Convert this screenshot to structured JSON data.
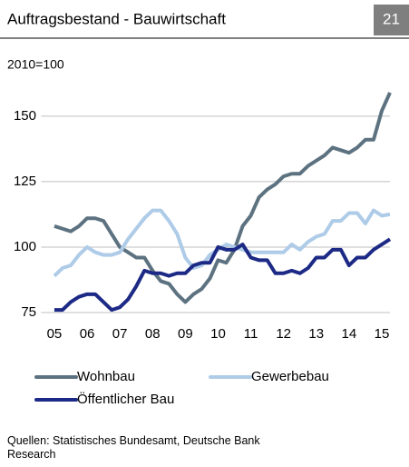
{
  "chart_data": {
    "type": "line",
    "title": "Auftragsbestand - Bauwirtschaft",
    "page_number": "21",
    "subtitle": "2010=100",
    "source": "Quellen: Statistisches Bundesamt, Deutsche Bank Research",
    "x": [
      2005,
      2005.25,
      2005.5,
      2005.75,
      2006,
      2006.25,
      2006.5,
      2006.75,
      2007,
      2007.25,
      2007.5,
      2007.75,
      2008,
      2008.25,
      2008.5,
      2008.75,
      2009,
      2009.25,
      2009.5,
      2009.75,
      2010,
      2010.25,
      2010.5,
      2010.75,
      2011,
      2011.25,
      2011.5,
      2011.75,
      2012,
      2012.25,
      2012.5,
      2012.75,
      2013,
      2013.25,
      2013.5,
      2013.75,
      2014,
      2014.25,
      2014.5,
      2014.75,
      2015,
      2015.25
    ],
    "series": [
      {
        "name": "Wohnbau",
        "color": "#5d7280",
        "values": [
          108,
          107,
          106,
          108,
          111,
          111,
          110,
          105,
          100,
          98,
          96,
          96,
          91,
          87,
          86,
          82,
          79,
          82,
          84,
          88,
          95,
          94,
          99,
          108,
          112,
          119,
          122,
          124,
          127,
          128,
          128,
          131,
          133,
          135,
          138,
          137,
          136,
          138,
          141,
          141,
          152,
          159
        ]
      },
      {
        "name": "Gewerbebau",
        "color": "#aecbe8",
        "values": [
          89,
          92,
          93,
          97,
          100,
          98,
          97,
          97,
          98,
          103,
          107,
          111,
          114,
          114,
          110,
          105,
          96,
          92,
          93,
          97,
          99,
          101,
          100,
          99,
          98,
          98,
          98,
          98,
          98,
          101,
          99,
          102,
          104,
          105,
          110,
          110,
          113,
          113,
          109,
          114,
          112,
          112.5
        ]
      },
      {
        "name": "Öffentlicher Bau",
        "color": "#1c2a86",
        "values": [
          76,
          76,
          79,
          81,
          82,
          82,
          79,
          76,
          77,
          80,
          85,
          91,
          90,
          90,
          89,
          90,
          90,
          93,
          94,
          94,
          100,
          99,
          99,
          101,
          96,
          95,
          95,
          90,
          90,
          91,
          90,
          92,
          96,
          96,
          99,
          99,
          93,
          96,
          96,
          99,
          101,
          103
        ]
      }
    ],
    "xlim": [
      2004.6,
      2015.25
    ],
    "xticks": [
      {
        "value": 2005,
        "label": "05"
      },
      {
        "value": 2006,
        "label": "06"
      },
      {
        "value": 2007,
        "label": "07"
      },
      {
        "value": 2008,
        "label": "08"
      },
      {
        "value": 2009,
        "label": "09"
      },
      {
        "value": 2010,
        "label": "10"
      },
      {
        "value": 2011,
        "label": "11"
      },
      {
        "value": 2012,
        "label": "12"
      },
      {
        "value": 2013,
        "label": "13"
      },
      {
        "value": 2014,
        "label": "14"
      },
      {
        "value": 2015,
        "label": "15"
      }
    ],
    "ylim": [
      75,
      160
    ],
    "yticks": [
      75,
      100,
      125,
      150
    ],
    "grid": true
  }
}
